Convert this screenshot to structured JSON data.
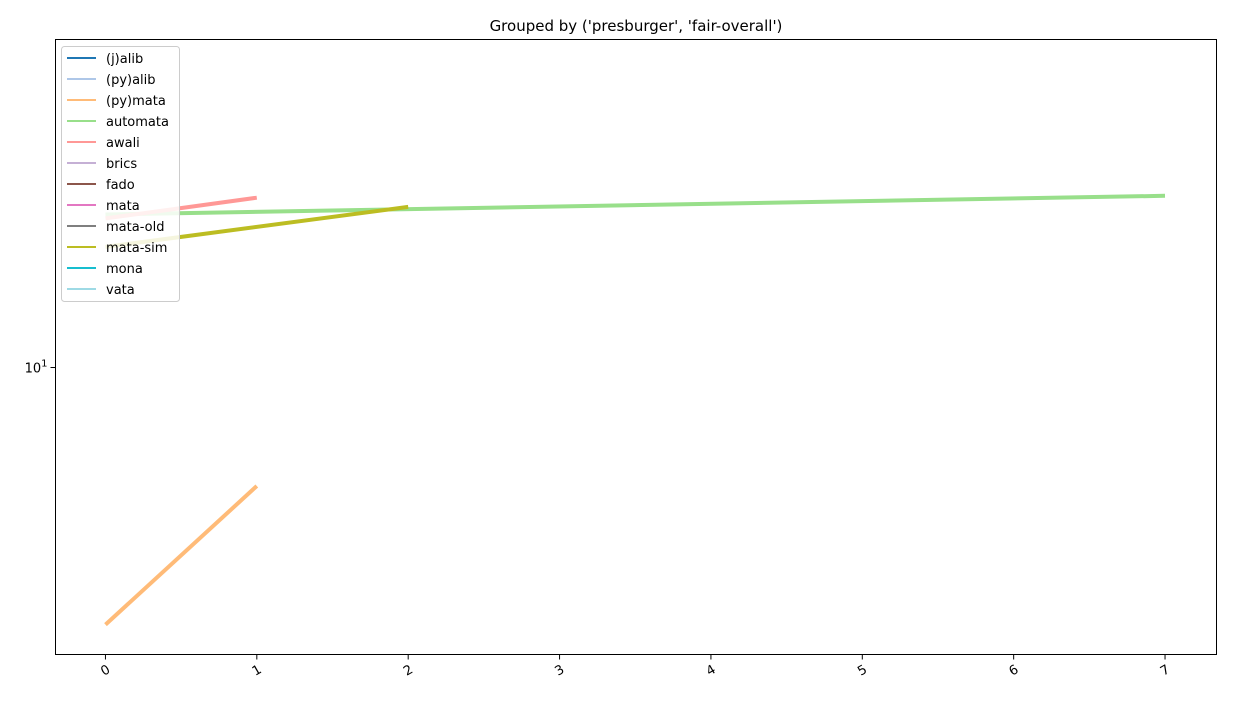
{
  "chart_data": {
    "type": "line",
    "title": "Grouped by ('presburger', 'fair-overall')",
    "xlabel": "",
    "ylabel": "",
    "x_ticks": [
      0,
      1,
      2,
      3,
      4,
      5,
      6,
      7
    ],
    "x_tick_labels": [
      "0",
      "1",
      "2",
      "3",
      "4",
      "5",
      "6",
      "7"
    ],
    "xlim": [
      -0.33,
      7.34
    ],
    "ylim": [
      4.0,
      28.5
    ],
    "y_scale": "log",
    "y_tick_label_base": "10",
    "y_tick_label_exp": "1",
    "y_tick_value": 10,
    "grid": false,
    "legend_position": "upper-left",
    "series": [
      {
        "name": "(j)alib",
        "color": "#1f77b4",
        "x": [],
        "y": []
      },
      {
        "name": "(py)alib",
        "color": "#aec7e8",
        "x": [],
        "y": []
      },
      {
        "name": "(py)mata",
        "color": "#ffbb78",
        "x": [
          0,
          1
        ],
        "y": [
          4.4,
          6.85
        ]
      },
      {
        "name": "automata",
        "color": "#98df8a",
        "x": [
          0,
          7
        ],
        "y": [
          16.3,
          17.3
        ]
      },
      {
        "name": "awali",
        "color": "#ff9896",
        "x": [
          0,
          1
        ],
        "y": [
          16.1,
          17.2
        ]
      },
      {
        "name": "brics",
        "color": "#c5b0d5",
        "x": [],
        "y": []
      },
      {
        "name": "fado",
        "color": "#8c564b",
        "x": [],
        "y": []
      },
      {
        "name": "mata",
        "color": "#e377c2",
        "x": [],
        "y": []
      },
      {
        "name": "mata-old",
        "color": "#7f7f7f",
        "x": [],
        "y": []
      },
      {
        "name": "mata-sim",
        "color": "#bcbd22",
        "x": [
          0,
          2
        ],
        "y": [
          14.7,
          16.7
        ]
      },
      {
        "name": "mona",
        "color": "#17becf",
        "x": [],
        "y": []
      },
      {
        "name": "vata",
        "color": "#9edae5",
        "x": [],
        "y": []
      }
    ]
  }
}
